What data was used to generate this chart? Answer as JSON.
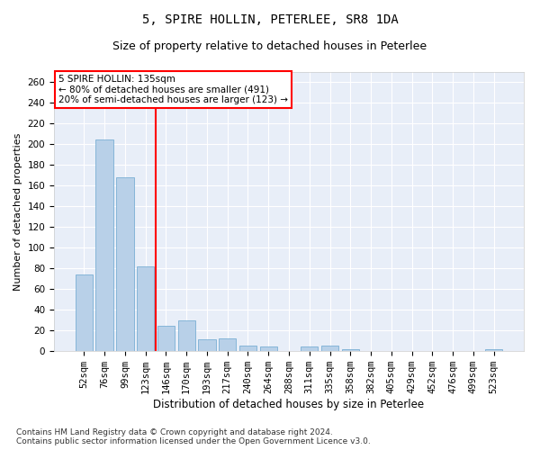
{
  "title1": "5, SPIRE HOLLIN, PETERLEE, SR8 1DA",
  "title2": "Size of property relative to detached houses in Peterlee",
  "xlabel": "Distribution of detached houses by size in Peterlee",
  "ylabel": "Number of detached properties",
  "categories": [
    "52sqm",
    "76sqm",
    "99sqm",
    "123sqm",
    "146sqm",
    "170sqm",
    "193sqm",
    "217sqm",
    "240sqm",
    "264sqm",
    "288sqm",
    "311sqm",
    "335sqm",
    "358sqm",
    "382sqm",
    "405sqm",
    "429sqm",
    "452sqm",
    "476sqm",
    "499sqm",
    "523sqm"
  ],
  "values": [
    74,
    205,
    168,
    82,
    24,
    30,
    11,
    12,
    5,
    4,
    0,
    4,
    5,
    2,
    0,
    0,
    0,
    0,
    0,
    0,
    2
  ],
  "bar_color": "#b8d0e8",
  "bar_edge_color": "#7aafd4",
  "vline_x": 3.5,
  "vline_color": "red",
  "annotation_text": "5 SPIRE HOLLIN: 135sqm\n← 80% of detached houses are smaller (491)\n20% of semi-detached houses are larger (123) →",
  "annotation_box_color": "white",
  "annotation_box_edge_color": "red",
  "ylim": [
    0,
    270
  ],
  "yticks": [
    0,
    20,
    40,
    60,
    80,
    100,
    120,
    140,
    160,
    180,
    200,
    220,
    240,
    260
  ],
  "footnote": "Contains HM Land Registry data © Crown copyright and database right 2024.\nContains public sector information licensed under the Open Government Licence v3.0.",
  "title1_fontsize": 10,
  "title2_fontsize": 9,
  "xlabel_fontsize": 8.5,
  "ylabel_fontsize": 8,
  "tick_fontsize": 7.5,
  "annotation_fontsize": 7.5,
  "footnote_fontsize": 6.5,
  "background_color": "#e8eef8"
}
